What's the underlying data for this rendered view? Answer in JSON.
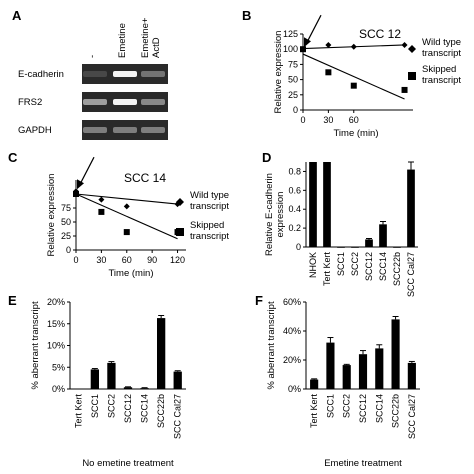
{
  "panels": {
    "A": {
      "label": "A",
      "lane_labels": [
        "-",
        "Emetine",
        "Emetine+\nActD"
      ],
      "row_labels": [
        "E-cadherin",
        "FRS2",
        "GAPDH"
      ],
      "band_intensity": [
        [
          0.15,
          0.95,
          0.35
        ],
        [
          0.55,
          0.95,
          0.45
        ],
        [
          0.4,
          0.4,
          0.4
        ]
      ]
    },
    "B": {
      "label": "B"
    },
    "C": {
      "label": "C"
    },
    "D": {
      "label": "D"
    },
    "E": {
      "label": "E"
    },
    "F": {
      "label": "F"
    }
  },
  "chart_data": [
    {
      "id": "B",
      "type": "scatter",
      "title": "SCC 12",
      "xlabel": "Time (min)",
      "ylabel": "Relative expression",
      "xlim": [
        0,
        130
      ],
      "ylim": [
        0,
        125
      ],
      "xticks": [
        0,
        30,
        60
      ],
      "yticks": [
        0,
        25,
        50,
        75,
        100,
        125
      ],
      "series": [
        {
          "name": "Wild type transcript",
          "marker": "diamond",
          "x": [
            0,
            30,
            60,
            120
          ],
          "y": [
            100,
            107,
            104,
            107
          ],
          "trend": [
            [
              0,
              101
            ],
            [
              120,
              107
            ]
          ]
        },
        {
          "name": "Skipped transcript",
          "marker": "square",
          "x": [
            0,
            30,
            60,
            120
          ],
          "y": [
            100,
            62,
            40,
            33
          ],
          "trend": [
            [
              0,
              92
            ],
            [
              120,
              18
            ]
          ]
        }
      ],
      "arrow": true
    },
    {
      "id": "C",
      "type": "scatter",
      "title": "SCC 14",
      "xlabel": "Time (min)",
      "ylabel": "Relative expression",
      "xlim": [
        0,
        130
      ],
      "ylim": [
        0,
        125
      ],
      "xticks": [
        0,
        30,
        60,
        90,
        120
      ],
      "yticks": [
        0,
        25,
        50,
        75
      ],
      "series": [
        {
          "name": "Wild type transcript",
          "marker": "diamond",
          "x": [
            0,
            30,
            60,
            120
          ],
          "y": [
            105,
            90,
            78,
            82
          ],
          "trend": [
            [
              0,
              100
            ],
            [
              120,
              82
            ]
          ]
        },
        {
          "name": "Skipped transcript",
          "marker": "square",
          "x": [
            0,
            30,
            60,
            120
          ],
          "y": [
            100,
            68,
            32,
            32
          ],
          "trend": [
            [
              0,
              100
            ],
            [
              120,
              20
            ]
          ]
        }
      ],
      "arrow": true
    },
    {
      "id": "D",
      "type": "bar",
      "xlabel": "",
      "ylabel": "Relative E-cadherin expression",
      "ylim": [
        0,
        0.9
      ],
      "yticks": [
        0,
        0.2,
        0.4,
        0.6,
        0.8
      ],
      "categories": [
        "NHOK",
        "Tert Kert",
        "SCC1",
        "SCC2",
        "SCC12",
        "SCC14",
        "SCC22b",
        "SCC Cal27"
      ],
      "values": [
        1.0,
        1.0,
        0.0,
        0.0,
        0.08,
        0.24,
        0.0,
        0.82
      ],
      "errors": [
        0,
        0,
        0,
        0,
        0.01,
        0.03,
        0,
        0.1
      ]
    },
    {
      "id": "E",
      "type": "bar",
      "xlabel": "No emetine treatment",
      "ylabel": "% aberrant transcript",
      "ylim": [
        0,
        20
      ],
      "yticks": [
        0,
        5,
        10,
        15,
        20
      ],
      "tick_suffix": "%",
      "categories": [
        "Tert Kert",
        "SCC1",
        "SCC2",
        "SCC12",
        "SCC14",
        "SCC22b",
        "SCC Cal27"
      ],
      "values": [
        0.1,
        4.5,
        6.0,
        0.4,
        0.2,
        16.3,
        4.0
      ],
      "errors": [
        0,
        0.2,
        0.3,
        0.1,
        0.1,
        0.6,
        0.2
      ]
    },
    {
      "id": "F",
      "type": "bar",
      "xlabel": "Emetine treatment",
      "ylabel": "% aberrant transcript",
      "ylim": [
        0,
        60
      ],
      "yticks": [
        0,
        20,
        40,
        60
      ],
      "tick_suffix": "%",
      "categories": [
        "Tert Kert",
        "SCC1",
        "SCC2",
        "SCC12",
        "SCC14",
        "SCC22b",
        "SCC Cal27"
      ],
      "values": [
        6.5,
        32,
        16.5,
        24,
        28,
        48,
        18
      ],
      "errors": [
        0.5,
        3.5,
        0.5,
        2.5,
        2.5,
        2,
        1
      ]
    }
  ]
}
